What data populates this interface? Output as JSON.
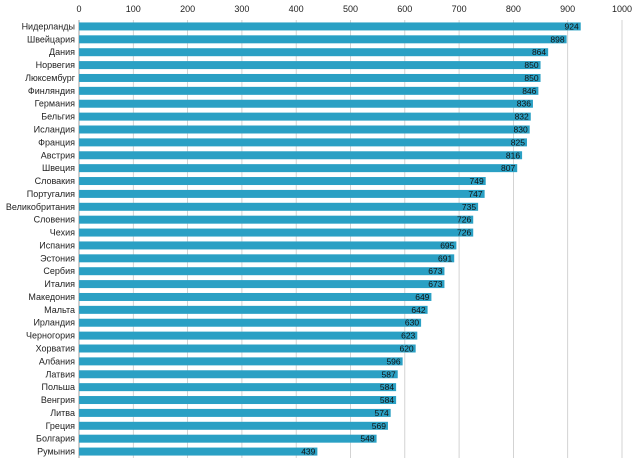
{
  "chart_data": {
    "type": "bar",
    "orientation": "horizontal",
    "title": "",
    "xlabel": "",
    "ylabel": "",
    "xlim": [
      0,
      1000
    ],
    "x_ticks": [
      "0",
      "100",
      "200",
      "300",
      "400",
      "500",
      "600",
      "700",
      "800",
      "900",
      "1000"
    ],
    "x_axis_position": "top",
    "grid": true,
    "legend": "none",
    "bar_color": "#2aa0c4",
    "categories": [
      "Нидерланды",
      "Швейцария",
      "Дания",
      "Норвегия",
      "Люксембург",
      "Финляндия",
      "Германия",
      "Бельгия",
      "Исландия",
      "Франция",
      "Австрия",
      "Швеция",
      "Словакия",
      "Португалия",
      "Великобритания",
      "Словения",
      "Чехия",
      "Испания",
      "Эстония",
      "Сербия",
      "Италия",
      "Македония",
      "Мальта",
      "Ирландия",
      "Черногория",
      "Хорватия",
      "Албания",
      "Латвия",
      "Польша",
      "Венгрия",
      "Литва",
      "Греция",
      "Болгария",
      "Румыния"
    ],
    "values": [
      924,
      898,
      864,
      850,
      850,
      846,
      836,
      832,
      830,
      825,
      816,
      807,
      749,
      747,
      735,
      726,
      726,
      695,
      691,
      673,
      673,
      649,
      642,
      630,
      623,
      620,
      596,
      587,
      584,
      584,
      574,
      569,
      548,
      439
    ],
    "value_labels": [
      "924",
      "898",
      "864",
      "850",
      "850",
      "846",
      "836",
      "832",
      "830",
      "825",
      "816",
      "807",
      "749",
      "747",
      "735",
      "726",
      "726",
      "695",
      "691",
      "673",
      "673",
      "649",
      "642",
      "630",
      "623",
      "620",
      "596",
      "587",
      "584",
      "584",
      "574",
      "569",
      "548",
      "439"
    ]
  }
}
